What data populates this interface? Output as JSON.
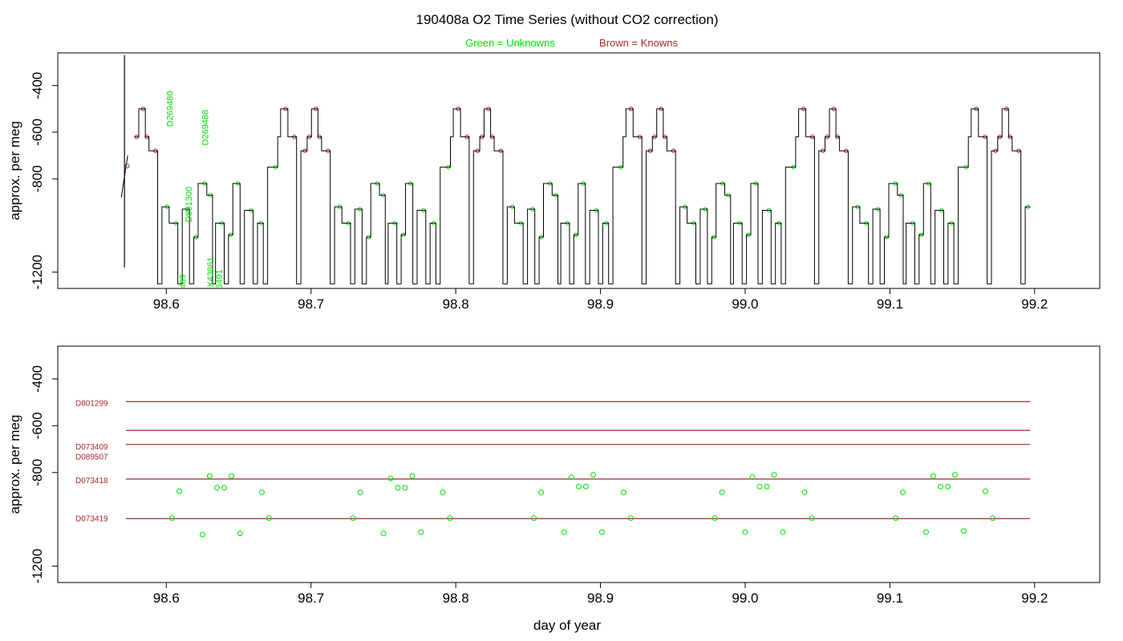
{
  "title": "190408a   O2 Time Series (without CO2 correction)",
  "legend": {
    "unknowns": "Green = Unknowns",
    "knowns": "Brown = Knowns",
    "unknown_color": "#00e000",
    "known_color": "#a52a2a"
  },
  "chart_data": [
    {
      "type": "line",
      "name": "top-panel",
      "title": "190408a   O2 Time Series (without CO2 correction)",
      "xlabel": "",
      "ylabel": "approx. per meg",
      "xlim": [
        98.525,
        99.245
      ],
      "ylim": [
        -1270,
        -260
      ],
      "y_reversed": true,
      "xticks": [
        "98.6",
        "98.7",
        "98.8",
        "98.9",
        "99.0",
        "99.1",
        "99.2"
      ],
      "yticks": [
        "-400",
        "-600",
        "-800",
        "-1200"
      ],
      "cycle_start": 98.578,
      "cycle_period": 0.1193,
      "cycle_levels": [
        {
          "dt": 0.0,
          "y": -620
        },
        {
          "dt": 0.003,
          "y": -500
        },
        {
          "dt": 0.0075,
          "y": -620
        },
        {
          "dt": 0.01,
          "y": -680
        },
        {
          "dt": 0.016,
          "y": -1250
        },
        {
          "dt": 0.019,
          "y": -920
        },
        {
          "dt": 0.024,
          "y": -990
        },
        {
          "dt": 0.03,
          "y": -1250
        },
        {
          "dt": 0.033,
          "y": -930
        },
        {
          "dt": 0.038,
          "y": -1250
        },
        {
          "dt": 0.041,
          "y": -1050
        },
        {
          "dt": 0.044,
          "y": -820
        },
        {
          "dt": 0.05,
          "y": -870
        },
        {
          "dt": 0.054,
          "y": -1250
        },
        {
          "dt": 0.056,
          "y": -990
        },
        {
          "dt": 0.062,
          "y": -1250
        },
        {
          "dt": 0.065,
          "y": -1040
        },
        {
          "dt": 0.068,
          "y": -820
        },
        {
          "dt": 0.073,
          "y": -1250
        },
        {
          "dt": 0.076,
          "y": -935
        },
        {
          "dt": 0.082,
          "y": -1250
        },
        {
          "dt": 0.085,
          "y": -990
        },
        {
          "dt": 0.089,
          "y": -1250
        },
        {
          "dt": 0.092,
          "y": -750
        },
        {
          "dt": 0.099,
          "y": -620
        },
        {
          "dt": 0.101,
          "y": -500
        },
        {
          "dt": 0.106,
          "y": -620
        },
        {
          "dt": 0.112,
          "y": -1250
        },
        {
          "dt": 0.115,
          "y": -680
        }
      ],
      "spike": {
        "x": 98.57,
        "min": -1180,
        "max": -270
      },
      "known_marker": {
        "x": 98.573,
        "y": -745
      },
      "annotations": [
        {
          "text": "D269480",
          "x": 98.6045,
          "y": -500
        },
        {
          "text": "D269488",
          "x": 98.629,
          "y": -580
        },
        {
          "text": "D801300",
          "x": 98.6175,
          "y": -910
        },
        {
          "text": "489",
          "x": 98.6135,
          "y": -1240
        },
        {
          "text": "X43861",
          "x": 98.6325,
          "y": -1200
        },
        {
          "text": "3491",
          "x": 98.6385,
          "y": -1230
        }
      ],
      "x_end": 99.197
    },
    {
      "type": "scatter",
      "name": "bottom-panel",
      "xlabel": "day of year",
      "ylabel": "approx. per meg",
      "xlim": [
        98.525,
        99.245
      ],
      "ylim": [
        -1270,
        -260
      ],
      "y_reversed": true,
      "xticks": [
        "98.6",
        "98.7",
        "98.8",
        "98.9",
        "99.0",
        "99.1",
        "99.2"
      ],
      "yticks": [
        "-400",
        "-600",
        "-800",
        "-1200"
      ],
      "reference_lines": [
        {
          "y": -497,
          "x": [
            98.572,
            99.197
          ]
        },
        {
          "y": -620,
          "x": [
            98.572,
            99.197
          ]
        },
        {
          "y": -680,
          "x": [
            98.572,
            99.197
          ]
        },
        {
          "y": -828,
          "x": [
            98.572,
            99.197
          ]
        },
        {
          "y": -997,
          "x": [
            98.572,
            99.197
          ]
        }
      ],
      "line_labels": [
        {
          "text": "D801299",
          "y": -502
        },
        {
          "text": "D073409",
          "y": -688
        },
        {
          "text": "D089507",
          "y": -730
        },
        {
          "text": "D073418",
          "y": -832
        },
        {
          "text": "D073419",
          "y": -995
        }
      ],
      "unknowns": [
        {
          "x": 98.604,
          "y": -995
        },
        {
          "x": 98.609,
          "y": -880
        },
        {
          "x": 98.625,
          "y": -1065
        },
        {
          "x": 98.63,
          "y": -815
        },
        {
          "x": 98.635,
          "y": -865
        },
        {
          "x": 98.64,
          "y": -865
        },
        {
          "x": 98.645,
          "y": -815
        },
        {
          "x": 98.651,
          "y": -1060
        },
        {
          "x": 98.666,
          "y": -885
        },
        {
          "x": 98.671,
          "y": -995
        },
        {
          "x": 98.729,
          "y": -995
        },
        {
          "x": 98.734,
          "y": -885
        },
        {
          "x": 98.75,
          "y": -1060
        },
        {
          "x": 98.755,
          "y": -825
        },
        {
          "x": 98.76,
          "y": -865
        },
        {
          "x": 98.765,
          "y": -865
        },
        {
          "x": 98.77,
          "y": -815
        },
        {
          "x": 98.776,
          "y": -1055
        },
        {
          "x": 98.791,
          "y": -885
        },
        {
          "x": 98.796,
          "y": -995
        },
        {
          "x": 98.854,
          "y": -995
        },
        {
          "x": 98.859,
          "y": -885
        },
        {
          "x": 98.875,
          "y": -1055
        },
        {
          "x": 98.88,
          "y": -820
        },
        {
          "x": 98.885,
          "y": -860
        },
        {
          "x": 98.89,
          "y": -860
        },
        {
          "x": 98.895,
          "y": -810
        },
        {
          "x": 98.901,
          "y": -1055
        },
        {
          "x": 98.916,
          "y": -885
        },
        {
          "x": 98.921,
          "y": -995
        },
        {
          "x": 98.979,
          "y": -995
        },
        {
          "x": 98.984,
          "y": -885
        },
        {
          "x": 99.0,
          "y": -1055
        },
        {
          "x": 99.005,
          "y": -820
        },
        {
          "x": 99.01,
          "y": -860
        },
        {
          "x": 99.015,
          "y": -860
        },
        {
          "x": 99.02,
          "y": -810
        },
        {
          "x": 99.026,
          "y": -1055
        },
        {
          "x": 99.041,
          "y": -885
        },
        {
          "x": 99.046,
          "y": -995
        },
        {
          "x": 99.104,
          "y": -995
        },
        {
          "x": 99.109,
          "y": -885
        },
        {
          "x": 99.125,
          "y": -1055
        },
        {
          "x": 99.13,
          "y": -815
        },
        {
          "x": 99.135,
          "y": -860
        },
        {
          "x": 99.14,
          "y": -860
        },
        {
          "x": 99.145,
          "y": -810
        },
        {
          "x": 99.151,
          "y": -1050
        },
        {
          "x": 99.166,
          "y": -880
        },
        {
          "x": 99.171,
          "y": -995
        }
      ]
    }
  ]
}
